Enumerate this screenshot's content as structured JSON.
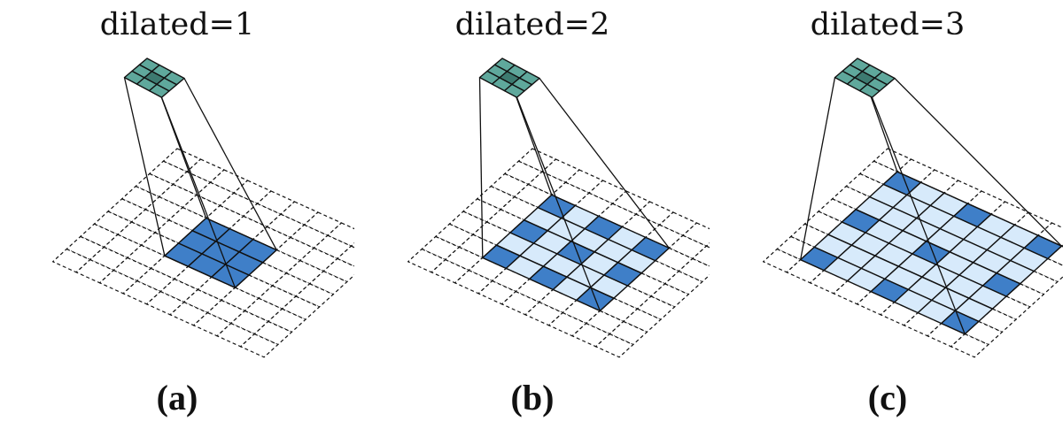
{
  "figure": {
    "panels": [
      {
        "title": "dilated=1",
        "caption": "(a)",
        "dilation": 1
      },
      {
        "title": "dilated=2",
        "caption": "(b)",
        "dilation": 2
      },
      {
        "title": "dilated=3",
        "caption": "(c)",
        "dilation": 3
      }
    ],
    "input_grid_cells": 9,
    "kernel_cells": 3,
    "colors": {
      "kernel": "#5fa89c",
      "kernel_center": "#3d7a70",
      "receptive_field": "#d7eafb",
      "sampled_cell": "#3f7fc8",
      "line": "#111111"
    }
  }
}
